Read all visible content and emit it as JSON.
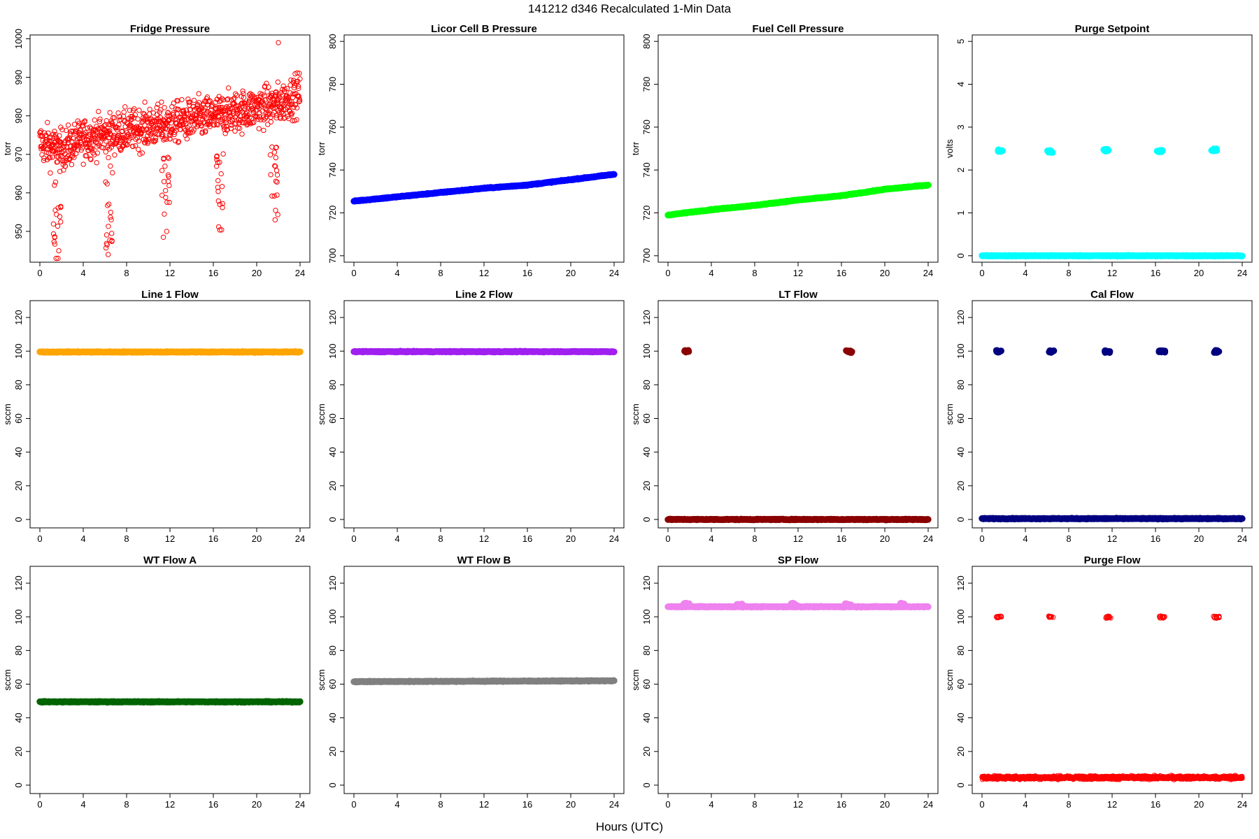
{
  "figure": {
    "title": "141212   d346   Recalculated 1-Min Data",
    "xlabel": "Hours (UTC)"
  },
  "chart_data": [
    {
      "type": "scatter",
      "title": "Fridge Pressure",
      "ylabel": "torr",
      "xlim": [
        0,
        24
      ],
      "ylim": [
        942,
        1001
      ],
      "xticks": [
        0,
        4,
        8,
        12,
        16,
        20,
        24
      ],
      "yticks": [
        950,
        960,
        970,
        980,
        990,
        1000
      ],
      "color": "#ff0000",
      "marker": "open-circle",
      "x": [
        0,
        2,
        4,
        6,
        8,
        10,
        12,
        14,
        16,
        18,
        20,
        22,
        24
      ],
      "values": [
        973,
        971,
        974,
        975,
        976,
        977,
        978,
        979,
        980,
        981,
        982,
        983,
        986
      ],
      "outliers": [
        {
          "x": 1.5,
          "y": 943
        },
        {
          "x": 6.3,
          "y": 944
        },
        {
          "x": 11.7,
          "y": 950
        },
        {
          "x": 16.6,
          "y": 957
        },
        {
          "x": 21.7,
          "y": 953
        },
        {
          "x": 22.0,
          "y": 999
        }
      ],
      "spread": 10,
      "events": [
        1.6,
        6.4,
        11.6,
        16.6,
        21.6
      ]
    },
    {
      "type": "scatter",
      "title": "Licor Cell B Pressure",
      "ylabel": "torr",
      "xlim": [
        0,
        24
      ],
      "ylim": [
        697,
        803
      ],
      "xticks": [
        0,
        4,
        8,
        12,
        16,
        20,
        24
      ],
      "yticks": [
        700,
        720,
        740,
        760,
        780,
        800
      ],
      "color": "#0000ff",
      "marker": "filled-circle",
      "x": [
        0,
        4,
        8,
        12,
        16,
        20,
        24
      ],
      "values": [
        725.5,
        727.5,
        729.5,
        731.5,
        733,
        735.5,
        738
      ]
    },
    {
      "type": "scatter",
      "title": "Fuel Cell Pressure",
      "ylabel": "torr",
      "xlim": [
        0,
        24
      ],
      "ylim": [
        697,
        803
      ],
      "xticks": [
        0,
        4,
        8,
        12,
        16,
        20,
        24
      ],
      "yticks": [
        700,
        720,
        740,
        760,
        780,
        800
      ],
      "color": "#00ff00",
      "marker": "filled-circle",
      "x": [
        0,
        4,
        8,
        12,
        16,
        20,
        24
      ],
      "values": [
        719,
        721.5,
        723.5,
        726,
        728,
        731,
        733
      ]
    },
    {
      "type": "scatter",
      "title": "Purge Setpoint",
      "ylabel": "volts",
      "xlim": [
        0,
        24
      ],
      "ylim": [
        -0.15,
        5.15
      ],
      "xticks": [
        0,
        4,
        8,
        12,
        16,
        20,
        24
      ],
      "yticks": [
        0,
        1,
        2,
        3,
        4,
        5
      ],
      "color": "#00ffff",
      "marker": "filled-circle",
      "x": [
        0,
        24
      ],
      "values": [
        0,
        0
      ],
      "events": [
        {
          "x": 1.6,
          "y": 2.45
        },
        {
          "x": 6.3,
          "y": 2.43
        },
        {
          "x": 11.4,
          "y": 2.46
        },
        {
          "x": 16.4,
          "y": 2.44
        },
        {
          "x": 21.4,
          "y": 2.47
        }
      ]
    },
    {
      "type": "scatter",
      "title": "Line 1 Flow",
      "ylabel": "sccm",
      "xlim": [
        0,
        24
      ],
      "ylim": [
        -5,
        130
      ],
      "xticks": [
        0,
        4,
        8,
        12,
        16,
        20,
        24
      ],
      "yticks": [
        0,
        20,
        40,
        60,
        80,
        100,
        120
      ],
      "color": "#ffa500",
      "marker": "filled-circle",
      "x": [
        0,
        24
      ],
      "values": [
        99.5,
        99.5
      ]
    },
    {
      "type": "scatter",
      "title": "Line 2 Flow",
      "ylabel": "sccm",
      "xlim": [
        0,
        24
      ],
      "ylim": [
        -5,
        130
      ],
      "xticks": [
        0,
        4,
        8,
        12,
        16,
        20,
        24
      ],
      "yticks": [
        0,
        20,
        40,
        60,
        80,
        100,
        120
      ],
      "color": "#a020f0",
      "marker": "filled-circle",
      "x": [
        0,
        24
      ],
      "values": [
        99.7,
        99.7
      ]
    },
    {
      "type": "scatter",
      "title": "LT Flow",
      "ylabel": "sccm",
      "xlim": [
        0,
        24
      ],
      "ylim": [
        -5,
        130
      ],
      "xticks": [
        0,
        4,
        8,
        12,
        16,
        20,
        24
      ],
      "yticks": [
        0,
        20,
        40,
        60,
        80,
        100,
        120
      ],
      "color": "#8b0000",
      "marker": "filled-circle",
      "x": [
        0,
        24
      ],
      "values": [
        0,
        0
      ],
      "events": [
        {
          "x": 1.7,
          "y": 99.8
        },
        {
          "x": 16.7,
          "y": 99.8
        }
      ]
    },
    {
      "type": "scatter",
      "title": "Cal Flow",
      "ylabel": "sccm",
      "xlim": [
        0,
        24
      ],
      "ylim": [
        -5,
        130
      ],
      "xticks": [
        0,
        4,
        8,
        12,
        16,
        20,
        24
      ],
      "yticks": [
        0,
        20,
        40,
        60,
        80,
        100,
        120
      ],
      "color": "#000080",
      "marker": "filled-circle",
      "x": [
        0,
        24
      ],
      "values": [
        0.5,
        0.5
      ],
      "events": [
        {
          "x": 1.6,
          "y": 99.8
        },
        {
          "x": 6.4,
          "y": 99.8
        },
        {
          "x": 11.6,
          "y": 99.8
        },
        {
          "x": 16.6,
          "y": 99.8
        },
        {
          "x": 21.6,
          "y": 99.8
        }
      ]
    },
    {
      "type": "scatter",
      "title": "WT Flow A",
      "ylabel": "sccm",
      "xlim": [
        0,
        24
      ],
      "ylim": [
        -5,
        130
      ],
      "xticks": [
        0,
        4,
        8,
        12,
        16,
        20,
        24
      ],
      "yticks": [
        0,
        20,
        40,
        60,
        80,
        100,
        120
      ],
      "color": "#006400",
      "marker": "filled-circle",
      "x": [
        0,
        24
      ],
      "values": [
        49.5,
        49.5
      ]
    },
    {
      "type": "scatter",
      "title": "WT Flow B",
      "ylabel": "sccm",
      "xlim": [
        0,
        24
      ],
      "ylim": [
        -5,
        130
      ],
      "xticks": [
        0,
        4,
        8,
        12,
        16,
        20,
        24
      ],
      "yticks": [
        0,
        20,
        40,
        60,
        80,
        100,
        120
      ],
      "color": "#808080",
      "marker": "filled-circle",
      "x": [
        0,
        24
      ],
      "values": [
        61.5,
        62
      ]
    },
    {
      "type": "scatter",
      "title": "SP Flow",
      "ylabel": "sccm",
      "xlim": [
        0,
        24
      ],
      "ylim": [
        -5,
        130
      ],
      "xticks": [
        0,
        4,
        8,
        12,
        16,
        20,
        24
      ],
      "yticks": [
        0,
        20,
        40,
        60,
        80,
        100,
        120
      ],
      "color": "#ee82ee",
      "marker": "filled-circle",
      "x": [
        0,
        24
      ],
      "values": [
        106,
        106
      ],
      "events": [
        {
          "x": 1.7,
          "y": 107.5
        },
        {
          "x": 6.6,
          "y": 107
        },
        {
          "x": 11.6,
          "y": 107.5
        },
        {
          "x": 16.6,
          "y": 107.5
        },
        {
          "x": 21.6,
          "y": 107.5
        }
      ]
    },
    {
      "type": "scatter",
      "title": "Purge Flow",
      "ylabel": "sccm",
      "xlim": [
        0,
        24
      ],
      "ylim": [
        -5,
        130
      ],
      "xticks": [
        0,
        4,
        8,
        12,
        16,
        20,
        24
      ],
      "yticks": [
        0,
        20,
        40,
        60,
        80,
        100,
        120
      ],
      "color": "#ff0000",
      "marker": "open-circle",
      "x": [
        0,
        24
      ],
      "values": [
        4.5,
        4.5
      ],
      "events": [
        {
          "x": 1.6,
          "y": 99.8
        },
        {
          "x": 6.4,
          "y": 99.8
        },
        {
          "x": 11.6,
          "y": 99.8
        },
        {
          "x": 16.6,
          "y": 99.8
        },
        {
          "x": 21.6,
          "y": 99.8
        }
      ],
      "spread": 1.8
    }
  ]
}
